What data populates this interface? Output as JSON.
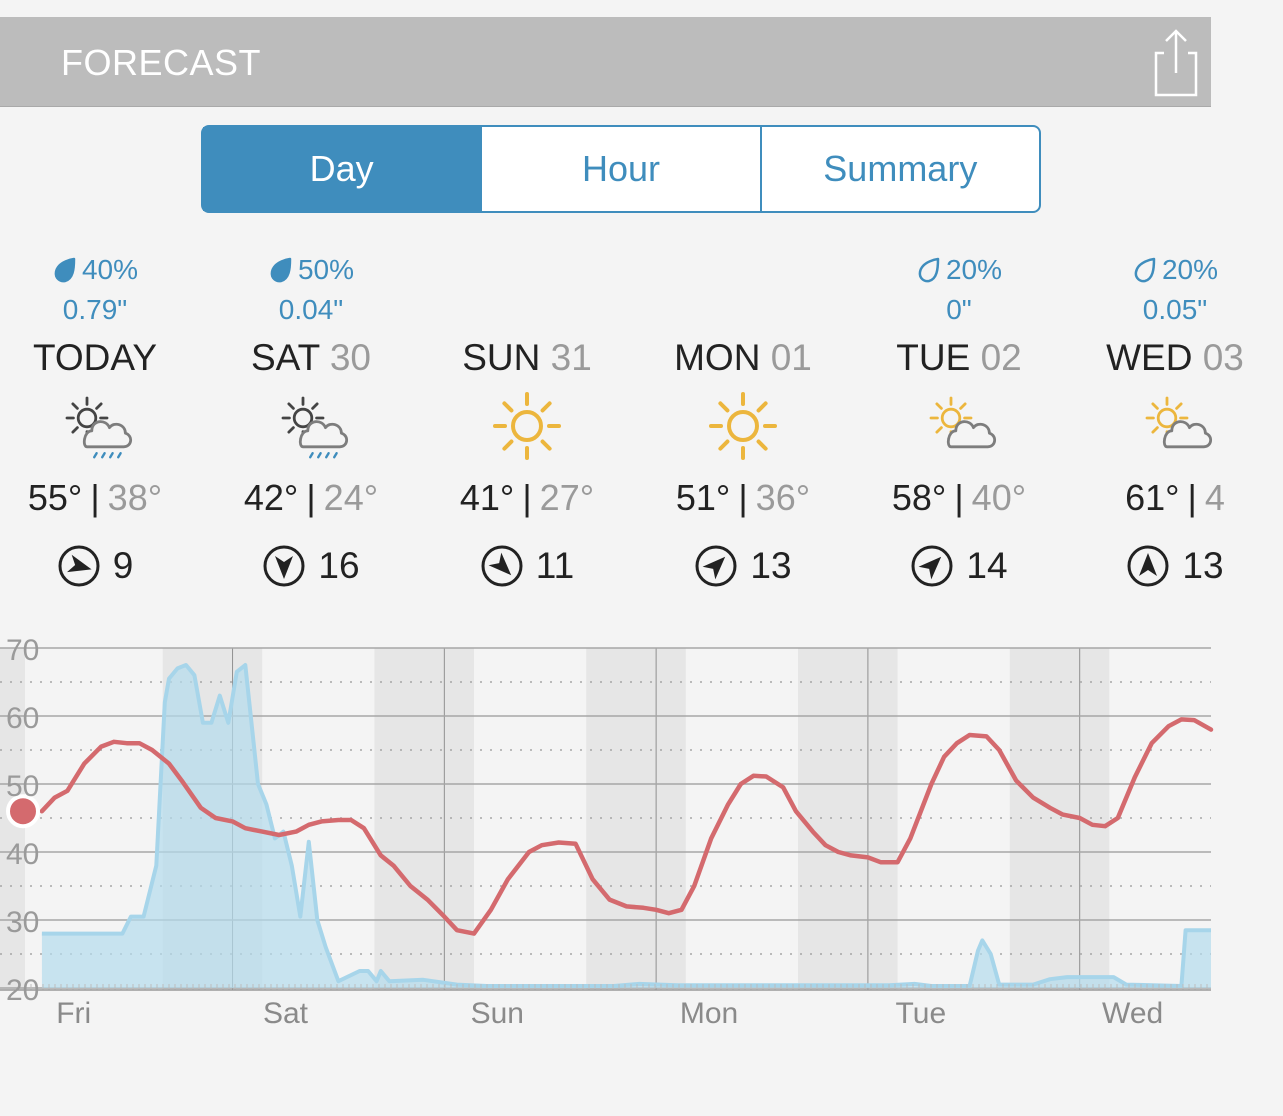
{
  "header": {
    "title": "FORECAST"
  },
  "tabs": [
    {
      "label": "Day",
      "active": true
    },
    {
      "label": "Hour",
      "active": false
    },
    {
      "label": "Summary",
      "active": false
    }
  ],
  "days": [
    {
      "name": "TODAY",
      "date": "",
      "precip_chance": "40%",
      "precip_amount": "0.79\"",
      "precip_icon": "filled-drop-icon",
      "icon": "partly-cloudy-rain",
      "high": "55°",
      "low": "38°",
      "wind_speed": "9",
      "wind_arrow_rotation_deg": 105
    },
    {
      "name": "SAT",
      "date": "30",
      "precip_chance": "50%",
      "precip_amount": "0.04\"",
      "precip_icon": "filled-drop-icon",
      "icon": "partly-cloudy-rain",
      "high": "42°",
      "low": "24°",
      "wind_speed": "16",
      "wind_arrow_rotation_deg": 180
    },
    {
      "name": "SUN",
      "date": "31",
      "precip_chance": "",
      "precip_amount": "",
      "precip_icon": "",
      "icon": "sunny",
      "high": "41°",
      "low": "27°",
      "wind_speed": "11",
      "wind_arrow_rotation_deg": 135
    },
    {
      "name": "MON",
      "date": "01",
      "precip_chance": "",
      "precip_amount": "",
      "precip_icon": "",
      "icon": "sunny",
      "high": "51°",
      "low": "36°",
      "wind_speed": "13",
      "wind_arrow_rotation_deg": 45
    },
    {
      "name": "TUE",
      "date": "02",
      "precip_chance": "20%",
      "precip_amount": "0\"",
      "precip_icon": "outline-drop-icon",
      "icon": "partly-cloudy",
      "high": "58°",
      "low": "40°",
      "wind_speed": "14",
      "wind_arrow_rotation_deg": 45
    },
    {
      "name": "WED",
      "date": "03",
      "precip_chance": "20%",
      "precip_amount": "0.05\"",
      "precip_icon": "outline-drop-icon",
      "icon": "partly-cloudy",
      "high": "61°",
      "low": "4",
      "wind_speed": "13",
      "wind_arrow_rotation_deg": 0
    }
  ],
  "chart_data": {
    "type": "line",
    "x_unit": "day index (0 = Fri 00:00)",
    "x_ticks": [
      {
        "label": "Fri",
        "x": 0.25
      },
      {
        "label": "Sat",
        "x": 1.25
      },
      {
        "label": "Sun",
        "x": 2.25
      },
      {
        "label": "Mon",
        "x": 3.25
      },
      {
        "label": "Tue",
        "x": 4.25
      },
      {
        "label": "Wed",
        "x": 5.25
      }
    ],
    "y_ticks": [
      "70",
      "60",
      "50",
      "40",
      "30",
      "20"
    ],
    "ylim": [
      20,
      70
    ],
    "xlim": [
      0.02,
      5.62
    ],
    "night_bands": [
      [
        0,
        0.02
      ],
      [
        0.67,
        1.14
      ],
      [
        1.67,
        2.14
      ],
      [
        2.67,
        3.14
      ],
      [
        3.67,
        4.14
      ],
      [
        4.67,
        5.14
      ]
    ],
    "current_point": {
      "x": 0.1,
      "y": 46
    },
    "colors": {
      "temperature": "#d46a6e",
      "precip_fill": "#b3dced",
      "precip_line": "#a7d5ea",
      "night_band": "#e6e6e6",
      "current_point": "#d46a6e"
    },
    "series": [
      {
        "name": "",
        "kind": "temperature",
        "points": [
          [
            0.1,
            46
          ],
          [
            0.16,
            48
          ],
          [
            0.22,
            49
          ],
          [
            0.3,
            53
          ],
          [
            0.38,
            55.5
          ],
          [
            0.44,
            56.2
          ],
          [
            0.5,
            56
          ],
          [
            0.56,
            56
          ],
          [
            0.62,
            55
          ],
          [
            0.7,
            53
          ],
          [
            0.76,
            50.5
          ],
          [
            0.85,
            46.5
          ],
          [
            0.92,
            45
          ],
          [
            1.0,
            44.5
          ],
          [
            1.06,
            43.5
          ],
          [
            1.14,
            43
          ],
          [
            1.22,
            42.5
          ],
          [
            1.3,
            43
          ],
          [
            1.36,
            44
          ],
          [
            1.42,
            44.5
          ],
          [
            1.5,
            44.7
          ],
          [
            1.56,
            44.7
          ],
          [
            1.62,
            43.5
          ],
          [
            1.7,
            39.5
          ],
          [
            1.76,
            38
          ],
          [
            1.84,
            35
          ],
          [
            1.92,
            33
          ],
          [
            2.0,
            30.5
          ],
          [
            2.06,
            28.5
          ],
          [
            2.14,
            28
          ],
          [
            2.22,
            31.5
          ],
          [
            2.3,
            36
          ],
          [
            2.4,
            40
          ],
          [
            2.46,
            41
          ],
          [
            2.54,
            41.4
          ],
          [
            2.62,
            41.2
          ],
          [
            2.7,
            36
          ],
          [
            2.78,
            33
          ],
          [
            2.86,
            32
          ],
          [
            2.94,
            31.8
          ],
          [
            3.0,
            31.5
          ],
          [
            3.06,
            31
          ],
          [
            3.12,
            31.5
          ],
          [
            3.18,
            35
          ],
          [
            3.26,
            42
          ],
          [
            3.34,
            47
          ],
          [
            3.4,
            50
          ],
          [
            3.46,
            51.2
          ],
          [
            3.52,
            51.1
          ],
          [
            3.6,
            49.5
          ],
          [
            3.66,
            46
          ],
          [
            3.74,
            43
          ],
          [
            3.8,
            41
          ],
          [
            3.86,
            40
          ],
          [
            3.92,
            39.5
          ],
          [
            4.0,
            39.2
          ],
          [
            4.06,
            38.5
          ],
          [
            4.14,
            38.5
          ],
          [
            4.2,
            42
          ],
          [
            4.3,
            50
          ],
          [
            4.36,
            54
          ],
          [
            4.42,
            56
          ],
          [
            4.48,
            57.2
          ],
          [
            4.56,
            57
          ],
          [
            4.62,
            55
          ],
          [
            4.7,
            50.5
          ],
          [
            4.78,
            48
          ],
          [
            4.86,
            46.5
          ],
          [
            4.92,
            45.5
          ],
          [
            5.0,
            45
          ],
          [
            5.06,
            44
          ],
          [
            5.12,
            43.8
          ],
          [
            5.18,
            45
          ],
          [
            5.26,
            51
          ],
          [
            5.34,
            56
          ],
          [
            5.42,
            58.5
          ],
          [
            5.48,
            59.5
          ],
          [
            5.54,
            59.4
          ],
          [
            5.62,
            58
          ]
        ]
      },
      {
        "name": "",
        "kind": "precipitation",
        "points": [
          [
            0.1,
            28
          ],
          [
            0.48,
            28
          ],
          [
            0.52,
            30.5
          ],
          [
            0.58,
            30.5
          ],
          [
            0.64,
            38
          ],
          [
            0.68,
            62
          ],
          [
            0.7,
            65.5
          ],
          [
            0.74,
            67
          ],
          [
            0.78,
            67.5
          ],
          [
            0.82,
            66
          ],
          [
            0.86,
            59
          ],
          [
            0.9,
            59
          ],
          [
            0.94,
            63
          ],
          [
            0.98,
            59
          ],
          [
            1.02,
            66.5
          ],
          [
            1.06,
            67.5
          ],
          [
            1.12,
            50
          ],
          [
            1.16,
            47
          ],
          [
            1.2,
            42
          ],
          [
            1.24,
            43
          ],
          [
            1.28,
            38
          ],
          [
            1.32,
            30.5
          ],
          [
            1.36,
            41.5
          ],
          [
            1.4,
            30
          ],
          [
            1.44,
            26
          ],
          [
            1.5,
            21
          ],
          [
            1.6,
            22.5
          ],
          [
            1.64,
            22.5
          ],
          [
            1.68,
            21
          ],
          [
            1.7,
            22.5
          ],
          [
            1.74,
            21
          ],
          [
            1.9,
            21.2
          ],
          [
            2.06,
            20.5
          ],
          [
            2.2,
            20.3
          ],
          [
            2.8,
            20.3
          ],
          [
            2.92,
            20.6
          ],
          [
            3.1,
            20.4
          ],
          [
            4.1,
            20.4
          ],
          [
            4.22,
            20.6
          ],
          [
            4.3,
            20.3
          ],
          [
            4.48,
            20.3
          ],
          [
            4.52,
            25.5
          ],
          [
            4.54,
            27
          ],
          [
            4.58,
            25
          ],
          [
            4.62,
            20.5
          ],
          [
            4.78,
            20.5
          ],
          [
            4.86,
            21.3
          ],
          [
            4.94,
            21.6
          ],
          [
            5.16,
            21.6
          ],
          [
            5.22,
            20.5
          ],
          [
            5.48,
            20.3
          ],
          [
            5.5,
            28.5
          ],
          [
            5.62,
            28.5
          ]
        ]
      }
    ]
  }
}
